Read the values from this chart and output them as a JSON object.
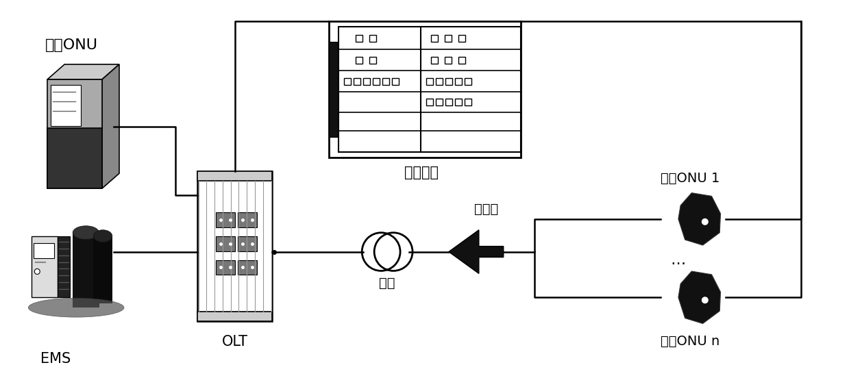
{
  "bg_color": "#ffffff",
  "labels": {
    "sim_onu": "仿真ONU",
    "ems": "EMS",
    "olt": "OLT",
    "test_instrument": "测试仪表",
    "splitter": "分光器",
    "fiber": "光纤",
    "real_onu1": "真实ONU 1",
    "real_onun": "真实ONU n"
  },
  "line_color": "#000000",
  "line_width": 1.8,
  "font_size": 14
}
